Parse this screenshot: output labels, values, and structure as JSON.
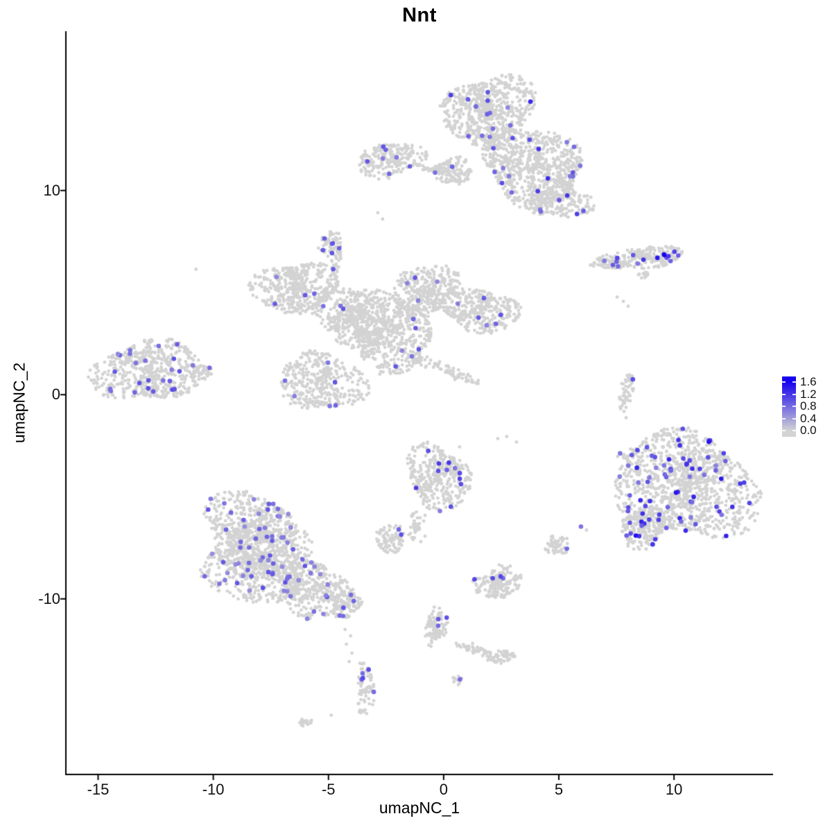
{
  "chart_data": {
    "type": "scatter",
    "title": "Nnt",
    "xlabel": "umapNC_1",
    "ylabel": "umapNC_2",
    "x_ticks": [
      -15,
      -10,
      -5,
      0,
      5,
      10
    ],
    "y_ticks": [
      10,
      0,
      -10
    ],
    "xlim": [
      -16.4,
      14.3
    ],
    "ylim": [
      -18.6,
      17.8
    ],
    "grid": false,
    "legend": {
      "position": "right",
      "ticks": [
        "1.6",
        "1.2",
        "0.8",
        "0.4",
        "0.0"
      ],
      "vmin": 0.0,
      "vmax": 1.6
    },
    "colors": {
      "low": "#d3d3d3",
      "high": "#1500ef",
      "axis": "#000000",
      "background": "#ffffff"
    },
    "point_style": {
      "gray_radius": 2.4,
      "expr_radius": 3.3
    },
    "seed": 42,
    "clusters": [
      {
        "name": "top-main-upper",
        "cx": 1.96,
        "cy": 13.91,
        "rx": 1.81,
        "ry": 1.87,
        "rot": 0,
        "n": 650,
        "expr_n": 13,
        "expr_t": [
          0.35,
          0.7
        ]
      },
      {
        "name": "top-main-lower",
        "cx": 3.92,
        "cy": 11.19,
        "rx": 2.41,
        "ry": 1.7,
        "rot": 0,
        "n": 650,
        "expr_n": 15,
        "expr_t": [
          0.35,
          0.75
        ]
      },
      {
        "name": "top-right-lobe",
        "cx": 4.88,
        "cy": 9.59,
        "rx": 1.63,
        "ry": 0.95,
        "rot": 0,
        "n": 260,
        "expr_n": 7,
        "expr_t": [
          0.35,
          0.8
        ]
      },
      {
        "name": "top-left-arm",
        "cx": 0.45,
        "cy": 10.95,
        "rx": 0.72,
        "ry": 0.75,
        "rot": 0,
        "n": 110,
        "expr_n": 1,
        "expr_t": [
          0.4,
          0.6
        ]
      },
      {
        "name": "upper-left-blob",
        "cx": -2.26,
        "cy": 11.5,
        "rx": 1.45,
        "ry": 0.85,
        "rot": 0,
        "n": 210,
        "expr_n": 7,
        "expr_t": [
          0.35,
          0.65
        ]
      },
      {
        "name": "upper-left-bridge",
        "cx": -0.18,
        "cy": 10.99,
        "rx": 0.66,
        "ry": 0.24,
        "rot": 10,
        "n": 35,
        "expr_n": 1,
        "expr_t": [
          0.4,
          0.55
        ]
      },
      {
        "name": "right-strip-tail",
        "cx": 7.17,
        "cy": 6.46,
        "rx": 0.9,
        "ry": 0.31,
        "rot": 5,
        "n": 80,
        "expr_n": 4,
        "expr_t": [
          0.4,
          0.7
        ]
      },
      {
        "name": "right-strip-head",
        "cx": 8.83,
        "cy": 6.73,
        "rx": 1.39,
        "ry": 0.58,
        "rot": 0,
        "n": 170,
        "expr_n": 9,
        "expr_t": [
          0.4,
          0.8
        ]
      },
      {
        "name": "right-strip-speck",
        "cx": 8.67,
        "cy": 5.88,
        "rx": 0.3,
        "ry": 0.2,
        "rot": 0,
        "n": 12,
        "expr_n": 0,
        "expr_t": [
          0,
          0
        ]
      },
      {
        "name": "center-left-lobe",
        "cx": -6.48,
        "cy": 5.24,
        "rx": 1.66,
        "ry": 1.36,
        "rot": 0,
        "n": 420,
        "expr_n": 4,
        "expr_t": [
          0.35,
          0.6
        ]
      },
      {
        "name": "center-midleft",
        "cx": -4.07,
        "cy": 3.88,
        "rx": 1.66,
        "ry": 1.53,
        "rot": 0,
        "n": 380,
        "expr_n": 4,
        "expr_t": [
          0.35,
          0.6
        ]
      },
      {
        "name": "center-core",
        "cx": -2.41,
        "cy": 3.1,
        "rx": 1.96,
        "ry": 1.87,
        "rot": 0,
        "n": 520,
        "expr_n": 5,
        "expr_t": [
          0.35,
          0.6
        ]
      },
      {
        "name": "center-top-arm",
        "cx": -0.84,
        "cy": 5.07,
        "rx": 1.36,
        "ry": 1.36,
        "rot": 0,
        "n": 330,
        "expr_n": 4,
        "expr_t": [
          0.35,
          0.6
        ]
      },
      {
        "name": "center-right-arm",
        "cx": 1.57,
        "cy": 4.15,
        "rx": 1.66,
        "ry": 1.12,
        "rot": 0,
        "n": 330,
        "expr_n": 6,
        "expr_t": [
          0.35,
          0.6
        ]
      },
      {
        "name": "center-bottom-lobe",
        "cx": -5.27,
        "cy": 0.65,
        "rx": 1.66,
        "ry": 1.63,
        "rot": 0,
        "n": 380,
        "expr_n": 6,
        "expr_t": [
          0.35,
          0.6
        ]
      },
      {
        "name": "center-diag-strand",
        "cx": -0.24,
        "cy": 1.36,
        "rx": 2.26,
        "ry": 0.26,
        "rot": 22,
        "n": 90,
        "expr_n": 1,
        "expr_t": [
          0.4,
          0.55
        ]
      },
      {
        "name": "center-up-strand",
        "cx": -4.7,
        "cy": 6.36,
        "rx": 0.23,
        "ry": 0.85,
        "rot": 8,
        "n": 35,
        "expr_n": 0,
        "expr_t": [
          0,
          0
        ]
      },
      {
        "name": "mini-purple-blob",
        "cx": -4.91,
        "cy": 7.38,
        "rx": 0.6,
        "ry": 0.6,
        "rot": 0,
        "n": 55,
        "expr_n": 6,
        "expr_t": [
          0.45,
          0.62
        ]
      },
      {
        "name": "far-left-blob",
        "cx": -12.8,
        "cy": 1.16,
        "rx": 2.17,
        "ry": 1.63,
        "rot": 0,
        "n": 520,
        "expr_n": 24,
        "expr_t": [
          0.35,
          0.65
        ]
      },
      {
        "name": "far-left-tip",
        "cx": -10.6,
        "cy": 1.12,
        "rx": 0.6,
        "ry": 0.37,
        "rot": 0,
        "n": 45,
        "expr_n": 1,
        "expr_t": [
          0.4,
          0.55
        ]
      },
      {
        "name": "bottomleft-upper",
        "cx": -8.43,
        "cy": -6.67,
        "rx": 2.17,
        "ry": 1.77,
        "rot": 0,
        "n": 560,
        "expr_n": 30,
        "expr_t": [
          0.33,
          0.62
        ]
      },
      {
        "name": "bottomleft-main",
        "cx": -7.98,
        "cy": -8.37,
        "rx": 2.56,
        "ry": 1.7,
        "rot": 0,
        "n": 600,
        "expr_n": 34,
        "expr_t": [
          0.33,
          0.62
        ]
      },
      {
        "name": "bottomleft-right",
        "cx": -5.57,
        "cy": -9.56,
        "rx": 1.75,
        "ry": 1.29,
        "rot": 0,
        "n": 320,
        "expr_n": 12,
        "expr_t": [
          0.33,
          0.62
        ]
      },
      {
        "name": "bottomleft-tip",
        "cx": -4.22,
        "cy": -10.31,
        "rx": 0.66,
        "ry": 0.61,
        "rot": 0,
        "n": 80,
        "expr_n": 3,
        "expr_t": [
          0.45,
          0.65
        ]
      },
      {
        "name": "bottom-tail-blob",
        "cx": -3.4,
        "cy": -14.42,
        "rx": 0.42,
        "ry": 1.19,
        "rot": 0,
        "n": 65,
        "expr_n": 5,
        "expr_t": [
          0.45,
          0.7
        ]
      },
      {
        "name": "bottom-left-speck",
        "cx": -6.02,
        "cy": -16.05,
        "rx": 0.3,
        "ry": 0.17,
        "rot": 0,
        "n": 20,
        "expr_n": 0,
        "expr_t": [
          0,
          0
        ]
      },
      {
        "name": "mid-teardrop",
        "cx": -0.24,
        "cy": -4.05,
        "rx": 1.36,
        "ry": 1.63,
        "rot": 0,
        "n": 360,
        "expr_n": 12,
        "expr_t": [
          0.4,
          0.75
        ]
      },
      {
        "name": "mid-teardrop-tail",
        "cx": -1.2,
        "cy": -6.33,
        "rx": 0.27,
        "ry": 0.85,
        "rot": 15,
        "n": 35,
        "expr_n": 0,
        "expr_t": [
          0,
          0
        ]
      },
      {
        "name": "mid-left-blob",
        "cx": -2.35,
        "cy": -7.07,
        "rx": 0.78,
        "ry": 0.61,
        "rot": 0,
        "n": 90,
        "expr_n": 2,
        "expr_t": [
          0.5,
          0.65
        ]
      },
      {
        "name": "mid-right-triangle",
        "cx": 4.91,
        "cy": -7.38,
        "rx": 0.51,
        "ry": 0.58,
        "rot": 0,
        "n": 55,
        "expr_n": 1,
        "expr_t": [
          0.45,
          0.55
        ]
      },
      {
        "name": "bottom-mid-blob",
        "cx": 2.38,
        "cy": -9.22,
        "rx": 0.99,
        "ry": 0.82,
        "rot": 0,
        "n": 160,
        "expr_n": 4,
        "expr_t": [
          0.45,
          0.75
        ]
      },
      {
        "name": "bottom-chain-blob",
        "cx": -0.36,
        "cy": -11.33,
        "rx": 0.48,
        "ry": 0.95,
        "rot": 0,
        "n": 100,
        "expr_n": 3,
        "expr_t": [
          0.4,
          0.65
        ]
      },
      {
        "name": "bottom-chain-arm",
        "cx": 1.45,
        "cy": -12.55,
        "rx": 1.05,
        "ry": 0.24,
        "rot": 20,
        "n": 60,
        "expr_n": 0,
        "expr_t": [
          0,
          0
        ]
      },
      {
        "name": "bottom-chain-end",
        "cx": 2.62,
        "cy": -12.82,
        "rx": 0.45,
        "ry": 0.34,
        "rot": 0,
        "n": 40,
        "expr_n": 0,
        "expr_t": [
          0,
          0
        ]
      },
      {
        "name": "bottom-tiny-blob",
        "cx": 0.6,
        "cy": -13.98,
        "rx": 0.24,
        "ry": 0.27,
        "rot": 0,
        "n": 12,
        "expr_n": 1,
        "expr_t": [
          0.45,
          0.55
        ]
      },
      {
        "name": "bottomright-main",
        "cx": 10.54,
        "cy": -4.46,
        "rx": 2.77,
        "ry": 2.89,
        "rot": 0,
        "n": 1050,
        "expr_n": 62,
        "expr_t": [
          0.38,
          0.85
        ]
      },
      {
        "name": "bottomright-bump",
        "cx": 8.73,
        "cy": -6.5,
        "rx": 1.05,
        "ry": 1.02,
        "rot": 0,
        "n": 180,
        "expr_n": 12,
        "expr_t": [
          0.45,
          0.85
        ]
      },
      {
        "name": "bottomright-edge",
        "cx": 8.07,
        "cy": -3.37,
        "rx": 0.45,
        "ry": 1.02,
        "rot": 0,
        "n": 22,
        "expr_n": 1,
        "expr_t": [
          0.4,
          0.5
        ]
      },
      {
        "name": "right-vert-strand",
        "cx": 7.92,
        "cy": 0.14,
        "rx": 0.27,
        "ry": 1.09,
        "rot": 10,
        "n": 45,
        "expr_n": 1,
        "expr_t": [
          0.55,
          0.65
        ]
      }
    ],
    "singles": [
      [
        -2.86,
        8.91
      ],
      [
        -2.65,
        8.6
      ],
      [
        -10.75,
        6.14
      ],
      [
        7.53,
        4.78
      ],
      [
        7.8,
        4.57
      ],
      [
        8.01,
        4.33
      ],
      [
        8.49,
        5.9
      ],
      [
        8.73,
        5.73
      ],
      [
        7.83,
        -0.82
      ],
      [
        7.92,
        -1.13
      ],
      [
        2.35,
        -2.15
      ],
      [
        2.74,
        -2.05
      ],
      [
        3.16,
        -2.32
      ],
      [
        0.69,
        -2.56
      ],
      [
        -1.33,
        -7.1
      ],
      [
        -0.99,
        -7.2
      ],
      [
        -0.81,
        -6.93
      ],
      [
        2.41,
        -8.33
      ],
      [
        2.74,
        -8.57
      ],
      [
        -4.88,
        -15.7
      ],
      [
        -4.28,
        -11.5
      ],
      [
        -4.04,
        -11.81
      ],
      [
        -4.22,
        -12.22
      ],
      [
        -3.98,
        -12.66
      ],
      [
        -4.1,
        -13.07
      ],
      [
        6.2,
        -6.63
      ],
      [
        5.96,
        -6.46,
        0.45
      ],
      [
        9.58,
        6.84,
        1.0
      ],
      [
        9.28,
        6.7,
        0.88
      ],
      [
        9.76,
        6.78,
        0.75
      ],
      [
        11.51,
        -2.31,
        0.9
      ],
      [
        12.05,
        -4.12,
        0.88
      ],
      [
        8.34,
        -6.9,
        0.92
      ],
      [
        10.09,
        -4.8,
        0.9
      ],
      [
        5.66,
        12.14,
        0.5
      ],
      [
        3.77,
        14.35,
        0.8
      ]
    ]
  }
}
